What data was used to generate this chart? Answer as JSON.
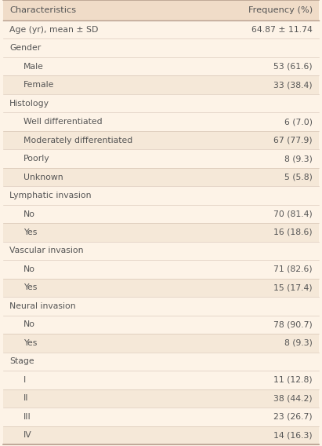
{
  "bg_color": "#fdf3e7",
  "row_bg_light": "#fdf3e7",
  "row_bg_dark": "#f5e8d8",
  "border_color": "#b8a090",
  "text_color": "#555555",
  "col1_header": "Characteristics",
  "col2_header": "Frequency (%)",
  "rows": [
    {
      "label": "Age (yr), mean ± SD",
      "value": "64.87 ± 11.74",
      "indent": 0,
      "is_section": false,
      "alt": false
    },
    {
      "label": "Gender",
      "value": "",
      "indent": 0,
      "is_section": true,
      "alt": false
    },
    {
      "label": "Male",
      "value": "53 (61.6)",
      "indent": 1,
      "is_section": false,
      "alt": false
    },
    {
      "label": "Female",
      "value": "33 (38.4)",
      "indent": 1,
      "is_section": false,
      "alt": true
    },
    {
      "label": "Histology",
      "value": "",
      "indent": 0,
      "is_section": true,
      "alt": false
    },
    {
      "label": "Well differentiated",
      "value": "6 (7.0)",
      "indent": 1,
      "is_section": false,
      "alt": false
    },
    {
      "label": "Moderately differentiated",
      "value": "67 (77.9)",
      "indent": 1,
      "is_section": false,
      "alt": true
    },
    {
      "label": "Poorly",
      "value": "8 (9.3)",
      "indent": 1,
      "is_section": false,
      "alt": false
    },
    {
      "label": "Unknown",
      "value": "5 (5.8)",
      "indent": 1,
      "is_section": false,
      "alt": true
    },
    {
      "label": "Lymphatic invasion",
      "value": "",
      "indent": 0,
      "is_section": true,
      "alt": false
    },
    {
      "label": "No",
      "value": "70 (81.4)",
      "indent": 1,
      "is_section": false,
      "alt": false
    },
    {
      "label": "Yes",
      "value": "16 (18.6)",
      "indent": 1,
      "is_section": false,
      "alt": true
    },
    {
      "label": "Vascular invasion",
      "value": "",
      "indent": 0,
      "is_section": true,
      "alt": false
    },
    {
      "label": "No",
      "value": "71 (82.6)",
      "indent": 1,
      "is_section": false,
      "alt": false
    },
    {
      "label": "Yes",
      "value": "15 (17.4)",
      "indent": 1,
      "is_section": false,
      "alt": true
    },
    {
      "label": "Neural invasion",
      "value": "",
      "indent": 0,
      "is_section": true,
      "alt": false
    },
    {
      "label": "No",
      "value": "78 (90.7)",
      "indent": 1,
      "is_section": false,
      "alt": false
    },
    {
      "label": "Yes",
      "value": "8 (9.3)",
      "indent": 1,
      "is_section": false,
      "alt": true
    },
    {
      "label": "Stage",
      "value": "",
      "indent": 0,
      "is_section": true,
      "alt": false
    },
    {
      "label": "I",
      "value": "11 (12.8)",
      "indent": 1,
      "is_section": false,
      "alt": false
    },
    {
      "label": "II",
      "value": "38 (44.2)",
      "indent": 1,
      "is_section": false,
      "alt": true
    },
    {
      "label": "III",
      "value": "23 (26.7)",
      "indent": 1,
      "is_section": false,
      "alt": false
    },
    {
      "label": "IV",
      "value": "14 (16.3)",
      "indent": 1,
      "is_section": false,
      "alt": true
    }
  ],
  "font_size": 7.8,
  "header_font_size": 8.2
}
